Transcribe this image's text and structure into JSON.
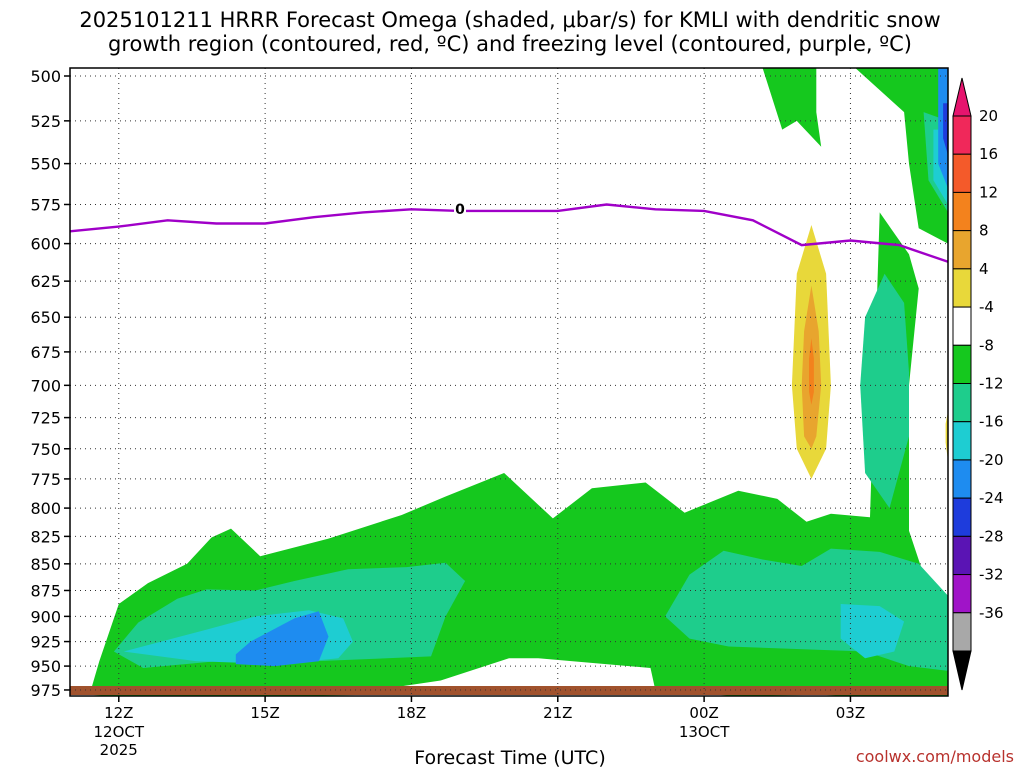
{
  "chart_data": {
    "type": "time-height-contour",
    "title_line1": "2025101211 HRRR Forecast Omega (shaded, μbar/s) for KMLI with dendritic snow",
    "title_line2": "growth region (contoured, red, ºC) and freezing level (contoured, purple, ºC)",
    "xlabel": "Forecast Time (UTC)",
    "credit": "coolwx.com/models",
    "y_levels_hpa": [
      500,
      525,
      550,
      575,
      600,
      625,
      650,
      675,
      700,
      725,
      750,
      775,
      800,
      825,
      850,
      875,
      900,
      925,
      950,
      975
    ],
    "y_ticks": [
      "500",
      "525",
      "550",
      "575",
      "600",
      "625",
      "650",
      "675",
      "700",
      "725",
      "750",
      "775",
      "800",
      "825",
      "850",
      "875",
      "900",
      "925",
      "950",
      "975"
    ],
    "ylim_hpa": [
      500,
      990
    ],
    "x_ticks": [
      {
        "hour": 1,
        "label": "12Z",
        "sub1": "12OCT",
        "sub2": "2025"
      },
      {
        "hour": 4,
        "label": "15Z",
        "sub1": "",
        "sub2": ""
      },
      {
        "hour": 7,
        "label": "18Z",
        "sub1": "",
        "sub2": ""
      },
      {
        "hour": 10,
        "label": "21Z",
        "sub1": "",
        "sub2": ""
      },
      {
        "hour": 13,
        "label": "00Z",
        "sub1": "13OCT",
        "sub2": ""
      },
      {
        "hour": 16,
        "label": "03Z",
        "sub1": "",
        "sub2": ""
      }
    ],
    "xlim_hours": [
      0,
      18
    ],
    "colorbar": {
      "labels": [
        "20",
        "16",
        "12",
        "8",
        "4",
        "-4",
        "-8",
        "-12",
        "-16",
        "-20",
        "-24",
        "-28",
        "-32",
        "-36"
      ],
      "colors": [
        "#f0285a",
        "#f45a2a",
        "#f3821d",
        "#e8a52e",
        "#e8d83a",
        "#ffffff",
        "#15c81e",
        "#1ecd8c",
        "#1ecdd2",
        "#1e8cf0",
        "#1e3cdc",
        "#5a14b4",
        "#a014c8",
        "#a8a8a8"
      ],
      "top_arrow_color": "#e6146e",
      "bottom_arrow_color": "#000000"
    },
    "freezing_level": {
      "label": "0",
      "color": "#a000c8",
      "points": [
        [
          0,
          592
        ],
        [
          1,
          589
        ],
        [
          2,
          585
        ],
        [
          3,
          587
        ],
        [
          4,
          587
        ],
        [
          5,
          583
        ],
        [
          6,
          580
        ],
        [
          7,
          578
        ],
        [
          8,
          579
        ],
        [
          9,
          579
        ],
        [
          10,
          579
        ],
        [
          11,
          575
        ],
        [
          12,
          578
        ],
        [
          13,
          579
        ],
        [
          14,
          585
        ],
        [
          15,
          601
        ],
        [
          16,
          598
        ],
        [
          17,
          601
        ],
        [
          18,
          612
        ]
      ]
    },
    "terrain_color": "#a0522d",
    "omega_regions": [
      {
        "level": "-4",
        "color": "#15c81e",
        "points": [
          [
            0.4,
            980
          ],
          [
            0.6,
            945
          ],
          [
            1,
            888
          ],
          [
            1.6,
            868
          ],
          [
            2.4,
            850
          ],
          [
            2.9,
            826
          ],
          [
            3.3,
            818
          ],
          [
            3.9,
            843
          ],
          [
            5.3,
            827
          ],
          [
            6.8,
            806
          ],
          [
            7.7,
            790
          ],
          [
            8.9,
            770
          ],
          [
            9.9,
            809
          ],
          [
            10.7,
            783
          ],
          [
            11.8,
            778
          ],
          [
            12.6,
            804
          ],
          [
            13.7,
            785
          ],
          [
            14.5,
            792
          ],
          [
            15.1,
            812
          ],
          [
            15.6,
            805
          ],
          [
            16.4,
            808
          ],
          [
            16.6,
            580
          ],
          [
            17.2,
            607
          ],
          [
            17.4,
            630
          ],
          [
            17.2,
            700
          ],
          [
            17.2,
            760
          ],
          [
            17.2,
            820
          ],
          [
            17.5,
            860
          ],
          [
            18,
            880
          ],
          [
            18,
            982
          ],
          [
            16.9,
            985
          ],
          [
            15.9,
            985
          ],
          [
            15.4,
            980
          ],
          [
            13.6,
            983
          ],
          [
            12,
            975
          ],
          [
            11.9,
            952
          ],
          [
            9.6,
            942
          ],
          [
            9,
            942
          ],
          [
            7.6,
            965
          ],
          [
            6.8,
            971
          ],
          [
            6.2,
            980
          ],
          [
            5,
            981
          ],
          [
            3.5,
            982
          ],
          [
            0.8,
            983
          ]
        ]
      },
      {
        "level": "-4",
        "color": "#15c81e",
        "points": [
          [
            14.2,
            495
          ],
          [
            15.3,
            495
          ],
          [
            15.3,
            520
          ],
          [
            15.4,
            540
          ],
          [
            14.9,
            525
          ],
          [
            14.6,
            530
          ],
          [
            14.2,
            495
          ]
        ]
      },
      {
        "level": "-4",
        "color": "#15c81e",
        "points": [
          [
            16.1,
            495
          ],
          [
            18,
            495
          ],
          [
            18,
            600
          ],
          [
            17.4,
            590
          ],
          [
            17.2,
            550
          ],
          [
            17.1,
            520
          ],
          [
            16.1,
            495
          ]
        ]
      },
      {
        "level": "-8",
        "color": "#1ecd8c",
        "points": [
          [
            0.9,
            935
          ],
          [
            1.4,
            906
          ],
          [
            2.2,
            883
          ],
          [
            2.8,
            874
          ],
          [
            3.8,
            875
          ],
          [
            4.6,
            866
          ],
          [
            5.7,
            855
          ],
          [
            6.9,
            853
          ],
          [
            7.7,
            849
          ],
          [
            8.1,
            866
          ],
          [
            7.7,
            900
          ],
          [
            7.4,
            940
          ],
          [
            6.5,
            942
          ],
          [
            5,
            945
          ],
          [
            3,
            945
          ],
          [
            1.5,
            952
          ],
          [
            0.9,
            935
          ]
        ]
      },
      {
        "level": "-8",
        "color": "#1ecd8c",
        "points": [
          [
            12.2,
            900
          ],
          [
            12.7,
            860
          ],
          [
            13.4,
            838
          ],
          [
            14.2,
            846
          ],
          [
            15,
            852
          ],
          [
            15.6,
            836
          ],
          [
            16.6,
            839
          ],
          [
            17.4,
            850
          ],
          [
            18,
            880
          ],
          [
            18,
            955
          ],
          [
            17.2,
            950
          ],
          [
            16.3,
            935
          ],
          [
            13.5,
            930
          ],
          [
            12.7,
            922
          ],
          [
            12.2,
            900
          ]
        ]
      },
      {
        "level": "-8",
        "color": "#1ecd8c",
        "points": [
          [
            16.7,
            620
          ],
          [
            17.1,
            640
          ],
          [
            17.2,
            690
          ],
          [
            17.2,
            740
          ],
          [
            16.8,
            800
          ],
          [
            16.3,
            770
          ],
          [
            16.2,
            700
          ],
          [
            16.3,
            650
          ],
          [
            16.7,
            620
          ]
        ]
      },
      {
        "level": "-8",
        "color": "#1ecd8c",
        "points": [
          [
            17.5,
            520
          ],
          [
            18,
            525
          ],
          [
            18,
            580
          ],
          [
            17.6,
            560
          ],
          [
            17.5,
            520
          ]
        ]
      },
      {
        "level": "-12",
        "color": "#1ecdd2",
        "points": [
          [
            1.1,
            935
          ],
          [
            2.8,
            913
          ],
          [
            3.8,
            900
          ],
          [
            4.9,
            894
          ],
          [
            5.6,
            902
          ],
          [
            5.8,
            925
          ],
          [
            5.5,
            942
          ],
          [
            4.3,
            948
          ],
          [
            2.6,
            945
          ],
          [
            1.1,
            935
          ]
        ]
      },
      {
        "level": "-12",
        "color": "#1ecdd2",
        "points": [
          [
            15.8,
            888
          ],
          [
            16.6,
            890
          ],
          [
            17.1,
            905
          ],
          [
            16.9,
            935
          ],
          [
            16.3,
            942
          ],
          [
            15.8,
            922
          ],
          [
            15.8,
            888
          ]
        ]
      },
      {
        "level": "-12",
        "color": "#1ecdd2",
        "points": [
          [
            17.7,
            530
          ],
          [
            18,
            530
          ],
          [
            18,
            575
          ],
          [
            17.7,
            560
          ],
          [
            17.7,
            530
          ]
        ]
      },
      {
        "level": "-16",
        "color": "#1e8cf0",
        "points": [
          [
            3.4,
            938
          ],
          [
            3.7,
            925
          ],
          [
            4.6,
            902
          ],
          [
            5.1,
            895
          ],
          [
            5.3,
            920
          ],
          [
            5.1,
            945
          ],
          [
            4.2,
            950
          ],
          [
            3.4,
            948
          ],
          [
            3.4,
            938
          ]
        ]
      },
      {
        "level": "-16",
        "color": "#1e8cf0",
        "points": [
          [
            17.8,
            495
          ],
          [
            18,
            495
          ],
          [
            18,
            565
          ],
          [
            17.8,
            550
          ],
          [
            17.8,
            495
          ]
        ]
      },
      {
        "level": "-20",
        "color": "#1e3cdc",
        "points": [
          [
            17.9,
            515
          ],
          [
            18,
            515
          ],
          [
            18,
            545
          ],
          [
            17.9,
            535
          ],
          [
            17.9,
            515
          ]
        ]
      },
      {
        "level": "4",
        "color": "#e8d83a",
        "points": [
          [
            15.2,
            588
          ],
          [
            15.5,
            620
          ],
          [
            15.6,
            700
          ],
          [
            15.5,
            750
          ],
          [
            15.2,
            775
          ],
          [
            14.9,
            750
          ],
          [
            14.8,
            700
          ],
          [
            14.9,
            620
          ],
          [
            15.2,
            588
          ]
        ]
      },
      {
        "level": "8",
        "color": "#e8a52e",
        "points": [
          [
            15.2,
            628
          ],
          [
            15.35,
            660
          ],
          [
            15.4,
            700
          ],
          [
            15.3,
            740
          ],
          [
            15.2,
            750
          ],
          [
            15.05,
            740
          ],
          [
            15,
            700
          ],
          [
            15.05,
            660
          ],
          [
            15.2,
            628
          ]
        ]
      },
      {
        "level": "12",
        "color": "#f3821d",
        "points": [
          [
            15.2,
            665
          ],
          [
            15.25,
            680
          ],
          [
            15.25,
            705
          ],
          [
            15.2,
            715
          ],
          [
            15.15,
            705
          ],
          [
            15.15,
            680
          ],
          [
            15.2,
            665
          ]
        ]
      },
      {
        "level": "4",
        "color": "#e8d83a",
        "points": [
          [
            17.95,
            730
          ],
          [
            18,
            720
          ],
          [
            18,
            760
          ],
          [
            17.95,
            745
          ],
          [
            17.95,
            730
          ]
        ]
      }
    ]
  }
}
